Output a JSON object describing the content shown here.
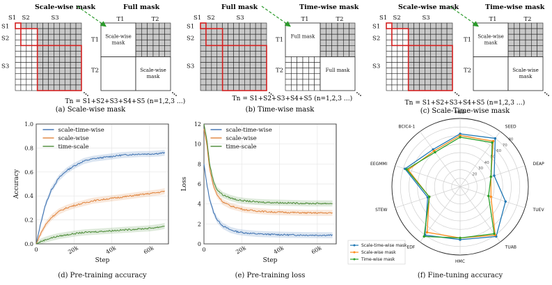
{
  "colors": {
    "grey": "#c8c8c8",
    "red": "#d42020",
    "green": "#2a9a2a",
    "blue": "#3a6fb0",
    "orange": "#e0823a",
    "olive": "#4a8a35",
    "radar_blue": "#1f77b4",
    "radar_orange": "#ff8c1a",
    "radar_green": "#2ca02c"
  },
  "panel_a": {
    "title_left": "Scale-wise mask",
    "title_right": "Full mask",
    "labels": [
      "S1",
      "S2",
      "S3"
    ],
    "t_labels": [
      "T1",
      "T2"
    ],
    "inner_top": "Scale-wise\nmask",
    "inner_bottom": "Scale-wise\nmask",
    "caption": "(a) Scale-wise mask"
  },
  "panel_b": {
    "title_left": "Full mask",
    "title_right": "Time-wise mask",
    "labels": [
      "S1",
      "S2",
      "S3"
    ],
    "t_labels": [
      "T1",
      "T2"
    ],
    "inner_top": "Full mask",
    "inner_bottom": "Full mask",
    "formula": "Tn = S1+S2+S3+S4+S5 (n=1,2,3 …)",
    "caption": "(b) Time-wise mask"
  },
  "panel_c": {
    "title_left": "Scale-wise mask",
    "title_right": "Time-wise mask",
    "labels": [
      "S1",
      "S2",
      "S3"
    ],
    "t_labels": [
      "T1",
      "T2"
    ],
    "inner_top": "Scale-wise\nmask",
    "inner_bottom": "Scale-wise\nmask",
    "caption": "(c) Scale-Time-wise mask"
  },
  "formula_a": "Tn = S1+S2+S3+S4+S5 (n=1,2,3 …)",
  "formula_c": "Tn = S1+S2+S3+S4+S5 (n=1,2,3 …)",
  "chart_data": [
    {
      "type": "line",
      "title": "",
      "caption": "(d) Pre-training accuracy",
      "xlabel": "Step",
      "ylabel": "Accuracy",
      "xlim": [
        0,
        70000
      ],
      "ylim": [
        0,
        1.0
      ],
      "xticks": [
        "0",
        "20k",
        "40k",
        "60k"
      ],
      "xtick_values": [
        0,
        20000,
        40000,
        60000
      ],
      "yticks": [
        "0.0",
        "0.2",
        "0.4",
        "0.6",
        "0.8",
        "1.0"
      ],
      "ytick_values": [
        0,
        0.2,
        0.4,
        0.6,
        0.8,
        1.0
      ],
      "legend": [
        "scale-time-wise",
        "scale-wise",
        "time-scale"
      ],
      "series": [
        {
          "name": "scale-time-wise",
          "x": [
            0,
            2500,
            5000,
            8000,
            12000,
            16000,
            20000,
            25000,
            30000,
            35000,
            40000,
            45000,
            50000,
            55000,
            60000,
            65000,
            68000
          ],
          "values": [
            0.0,
            0.18,
            0.33,
            0.45,
            0.55,
            0.61,
            0.65,
            0.69,
            0.71,
            0.72,
            0.73,
            0.74,
            0.745,
            0.75,
            0.75,
            0.755,
            0.76
          ]
        },
        {
          "name": "scale-wise",
          "x": [
            0,
            2500,
            5000,
            8000,
            12000,
            16000,
            20000,
            25000,
            30000,
            35000,
            40000,
            45000,
            50000,
            55000,
            60000,
            65000,
            68000
          ],
          "values": [
            0.0,
            0.09,
            0.16,
            0.22,
            0.27,
            0.3,
            0.32,
            0.34,
            0.36,
            0.37,
            0.38,
            0.39,
            0.4,
            0.41,
            0.42,
            0.43,
            0.44
          ]
        },
        {
          "name": "time-scale",
          "x": [
            0,
            2500,
            5000,
            8000,
            12000,
            16000,
            20000,
            25000,
            30000,
            35000,
            40000,
            45000,
            50000,
            55000,
            60000,
            65000,
            68000
          ],
          "values": [
            0.0,
            0.02,
            0.035,
            0.05,
            0.065,
            0.075,
            0.085,
            0.095,
            0.1,
            0.105,
            0.11,
            0.115,
            0.12,
            0.125,
            0.13,
            0.14,
            0.15
          ]
        }
      ]
    },
    {
      "type": "line",
      "title": "",
      "caption": "(e) Pre-training loss",
      "xlabel": "Step",
      "ylabel": "Loss",
      "xlim": [
        0,
        70000
      ],
      "ylim": [
        0,
        12
      ],
      "xticks": [
        "0",
        "20k",
        "40k",
        "60k"
      ],
      "xtick_values": [
        0,
        20000,
        40000,
        60000
      ],
      "yticks": [
        "0",
        "2",
        "4",
        "6",
        "8",
        "10",
        "12"
      ],
      "ytick_values": [
        0,
        2,
        4,
        6,
        8,
        10,
        12
      ],
      "legend": [
        "scale-time-wise",
        "scale-wise",
        "time-scale"
      ],
      "series": [
        {
          "name": "scale-time-wise",
          "x": [
            0,
            1500,
            3000,
            5000,
            7000,
            10000,
            14000,
            18000,
            22000,
            28000,
            35000,
            45000,
            55000,
            65000,
            68000
          ],
          "values": [
            8.0,
            6.0,
            4.5,
            3.2,
            2.4,
            1.8,
            1.4,
            1.2,
            1.1,
            1.0,
            0.95,
            0.9,
            0.88,
            0.87,
            0.87
          ]
        },
        {
          "name": "scale-wise",
          "x": [
            0,
            1500,
            3000,
            5000,
            7000,
            10000,
            14000,
            18000,
            22000,
            28000,
            35000,
            45000,
            55000,
            65000,
            68000
          ],
          "values": [
            11.5,
            10.0,
            7.5,
            5.8,
            4.9,
            4.2,
            3.8,
            3.6,
            3.4,
            3.3,
            3.2,
            3.15,
            3.1,
            3.1,
            3.1
          ]
        },
        {
          "name": "time-scale",
          "x": [
            0,
            1500,
            3000,
            5000,
            7000,
            10000,
            14000,
            18000,
            22000,
            28000,
            35000,
            45000,
            55000,
            65000,
            68000
          ],
          "values": [
            12.0,
            10.5,
            8.0,
            6.3,
            5.4,
            4.9,
            4.6,
            4.4,
            4.3,
            4.2,
            4.15,
            4.1,
            4.05,
            4.05,
            4.05
          ]
        }
      ]
    },
    {
      "type": "radar",
      "title": "",
      "caption": "(f) Fine-tuning accuracy",
      "axes": [
        "MBD",
        "SEED",
        "DEAP",
        "TUEV",
        "TUAB",
        "HMC",
        "EDF",
        "STEW",
        "EEGMMI",
        "BCIC4-1"
      ],
      "rmax": 80,
      "ring_values": [
        10,
        20,
        30,
        40,
        50,
        60,
        70,
        80
      ],
      "ring_labels": [
        "10",
        "20",
        "30",
        "40",
        "50",
        "60",
        "70",
        "80"
      ],
      "legend": [
        "Scale-time-wise mask",
        "Scale-wise mask",
        "Time-wise mask"
      ],
      "series": [
        {
          "name": "Scale-time-wise mask",
          "values": [
            62,
            70,
            42,
            56,
            72,
            62,
            70,
            40,
            68,
            54
          ]
        },
        {
          "name": "Scale-wise mask",
          "values": [
            60,
            66,
            38,
            38,
            70,
            60,
            66,
            38,
            64,
            52
          ]
        },
        {
          "name": "Time-wise mask",
          "values": [
            58,
            64,
            38,
            35,
            68,
            60,
            72,
            38,
            66,
            50
          ]
        }
      ]
    }
  ]
}
